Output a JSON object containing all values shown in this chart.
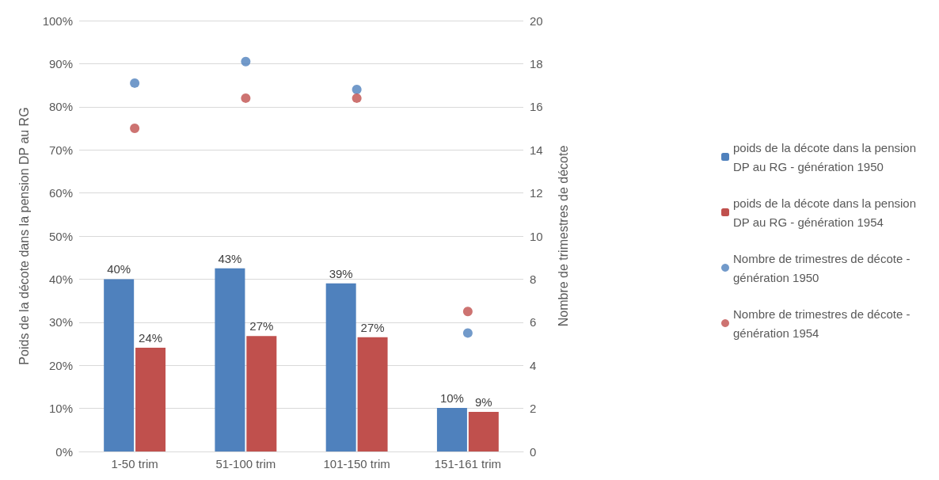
{
  "chart_data": {
    "type": "bar",
    "ylabel": "Poids de la décote dans la pension DP au RG",
    "y2label": "Nombre de trimestres de décote",
    "categories": [
      "1-50 trim",
      "51-100 trim",
      "101-150 trim",
      "151-161 trim"
    ],
    "series": [
      {
        "name": "poids de la décote dans la pension DP au RG - génération 1950",
        "color": "#4f81bd",
        "values": [
          40,
          42.5,
          39,
          10.1
        ],
        "value_labels": [
          "40%",
          "43%",
          "39%",
          "10%"
        ]
      },
      {
        "name": "poids de la décote dans la pension DP au RG - génération 1954",
        "color": "#c0504d",
        "values": [
          24.1,
          26.8,
          26.5,
          9.2
        ],
        "value_labels": [
          "24%",
          "27%",
          "27%",
          "9%"
        ]
      },
      {
        "name": "Nombre de trimestres de décote - génération 1950",
        "type": "scatter",
        "axis": "y2",
        "color": "#4f81bd",
        "x": [
          "1-50 trim",
          "51-100 trim",
          "101-150 trim",
          "151-161 trim"
        ],
        "values": [
          17.1,
          18.1,
          16.8,
          5.5
        ]
      },
      {
        "name": "Nombre de trimestres de décote - génération 1954",
        "type": "scatter",
        "axis": "y2",
        "color": "#c0504d",
        "x": [
          "1-50 trim",
          "51-100 trim",
          "101-150 trim",
          "151-161 trim"
        ],
        "values": [
          15,
          16.4,
          16.4,
          6.5
        ]
      }
    ],
    "ylim": [
      0,
      100
    ],
    "yticks": [
      {
        "value": 0,
        "label": "0%"
      },
      {
        "value": 10,
        "label": "10%"
      },
      {
        "value": 20,
        "label": "20%"
      },
      {
        "value": 30,
        "label": "30%"
      },
      {
        "value": 40,
        "label": "40%"
      },
      {
        "value": 50,
        "label": "50%"
      },
      {
        "value": 60,
        "label": "60%"
      },
      {
        "value": 70,
        "label": "70%"
      },
      {
        "value": 80,
        "label": "80%"
      },
      {
        "value": 90,
        "label": "90%"
      },
      {
        "value": 100,
        "label": "100%"
      }
    ],
    "y2lim": [
      0,
      20
    ],
    "y2ticks": [
      0,
      2,
      4,
      6,
      8,
      10,
      12,
      14,
      16,
      18,
      20
    ],
    "grid": "y",
    "legend": "right",
    "marker": "circle"
  }
}
